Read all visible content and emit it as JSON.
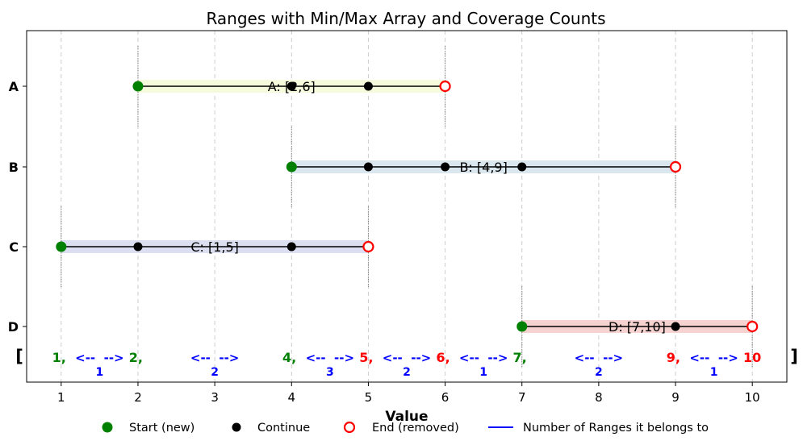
{
  "chart_data": {
    "type": "range-timeline",
    "title": "Ranges with Min/Max Array and Coverage Counts",
    "xlabel": "Value",
    "ylabel": "",
    "xlim": [
      0.55,
      10.45
    ],
    "xticks": [
      1,
      2,
      3,
      4,
      5,
      6,
      7,
      8,
      9,
      10
    ],
    "grid": "vertical-dashed",
    "ranges": [
      {
        "name": "A",
        "label": "A: [2,6]",
        "start": 2,
        "end": 6,
        "points": [
          2,
          4,
          5,
          6
        ],
        "color": "#f7fbdc"
      },
      {
        "name": "B",
        "label": "B: [4,9]",
        "start": 4,
        "end": 9,
        "points": [
          4,
          5,
          6,
          7,
          9
        ],
        "color": "#d9e6ee"
      },
      {
        "name": "C",
        "label": "C: [1,5]",
        "start": 1,
        "end": 5,
        "points": [
          1,
          2,
          4,
          5
        ],
        "color": "#d9ddf0"
      },
      {
        "name": "D",
        "label": "D: [7,10]",
        "start": 7,
        "end": 10,
        "points": [
          7,
          9,
          10
        ],
        "color": "#f6d1cf"
      }
    ],
    "array": {
      "open_bracket": "[",
      "close_bracket": "]",
      "elements": [
        {
          "label": "1,",
          "x": 1,
          "kind": "start"
        },
        {
          "label": "2,",
          "x": 2,
          "kind": "start"
        },
        {
          "label": "4,",
          "x": 4,
          "kind": "start"
        },
        {
          "label": "5,",
          "x": 5,
          "kind": "end"
        },
        {
          "label": "6,",
          "x": 6,
          "kind": "end"
        },
        {
          "label": "7,",
          "x": 7,
          "kind": "start"
        },
        {
          "label": "9,",
          "x": 9,
          "kind": "end"
        },
        {
          "label": "10",
          "x": 10,
          "kind": "end"
        }
      ],
      "gaps": [
        {
          "from": 1,
          "to": 2,
          "arrow": "<--  -->",
          "count": "1"
        },
        {
          "from": 2,
          "to": 4,
          "arrow": "<--  -->",
          "count": "2"
        },
        {
          "from": 4,
          "to": 5,
          "arrow": "<--  -->",
          "count": "3"
        },
        {
          "from": 5,
          "to": 6,
          "arrow": "<--  -->",
          "count": "2"
        },
        {
          "from": 6,
          "to": 7,
          "arrow": "<--  -->",
          "count": "1"
        },
        {
          "from": 7,
          "to": 9,
          "arrow": "<--  -->",
          "count": "2"
        },
        {
          "from": 9,
          "to": 10,
          "arrow": "<--  -->",
          "count": "1"
        }
      ]
    },
    "legend": {
      "placement": "bottom",
      "entries": [
        {
          "label": "Start (new)",
          "kind": "start"
        },
        {
          "label": "Continue",
          "kind": "continue"
        },
        {
          "label": "End (removed)",
          "kind": "end"
        },
        {
          "label": "Number of Ranges it belongs to",
          "kind": "count"
        }
      ]
    },
    "colors": {
      "start": "#008000",
      "continue": "#000000",
      "end": "#ff0000",
      "count": "#0000ff",
      "grid": "#cccccc",
      "boundary": "#808080"
    }
  }
}
